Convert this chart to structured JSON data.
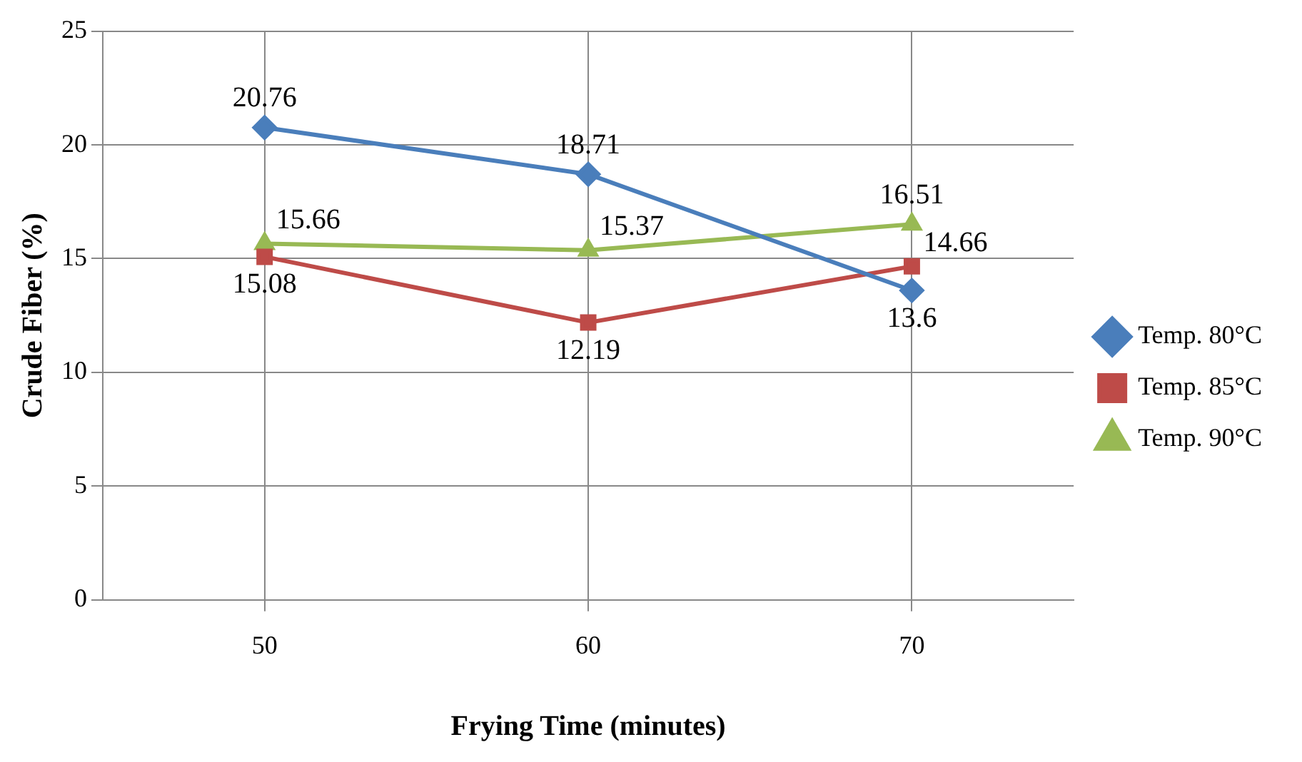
{
  "chart_data": {
    "type": "line",
    "xlabel": "Frying Time (minutes)",
    "ylabel": "Crude Fiber (%)",
    "categories": [
      "50",
      "60",
      "70"
    ],
    "series": [
      {
        "name": "Temp. 80°C",
        "color": "#4a7ebb",
        "marker": "diamond",
        "values": [
          20.76,
          18.71,
          13.6
        ]
      },
      {
        "name": "Temp. 85°C",
        "color": "#be4b48",
        "marker": "square",
        "values": [
          15.08,
          12.19,
          14.66
        ]
      },
      {
        "name": "Temp. 90°C",
        "color": "#98b954",
        "marker": "triangle",
        "values": [
          15.66,
          15.37,
          16.51
        ]
      }
    ],
    "ylim": [
      0,
      25
    ],
    "yticks": [
      0,
      5,
      10,
      15,
      20,
      25
    ],
    "grid": true,
    "legend": "right",
    "data_labels": true
  }
}
